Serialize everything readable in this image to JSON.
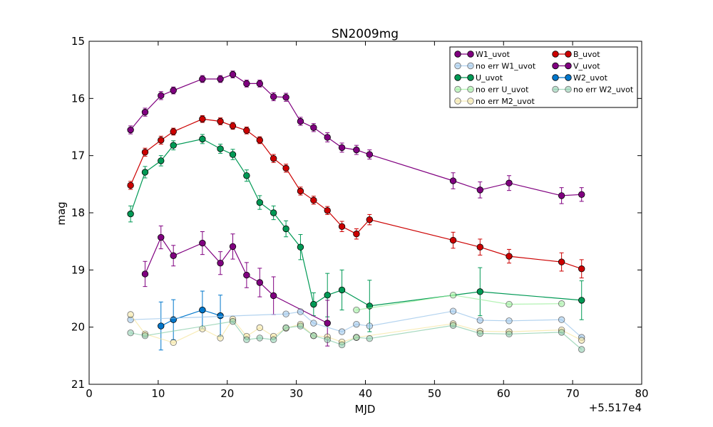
{
  "chart_data": {
    "type": "scatter",
    "title": "SN2009mg",
    "xlabel": "MJD",
    "ylabel": "mag",
    "x_offset_label": "+5.517e4",
    "xlim": [
      0,
      80
    ],
    "ylim": [
      21,
      15
    ],
    "y_inverted": true,
    "grid": false,
    "legend_position": "top-right",
    "x_ticks": [
      "0",
      "10",
      "20",
      "30",
      "40",
      "50",
      "60",
      "70",
      "80"
    ],
    "y_ticks": [
      "15",
      "16",
      "17",
      "18",
      "19",
      "20",
      "21"
    ],
    "legend_entries": [
      "W1_uvot",
      "B_uvot",
      "no err W1_uvot",
      "V_uvot",
      "U_uvot",
      "W2_uvot",
      "no err U_uvot",
      "no err W2_uvot",
      "no err M2_uvot"
    ],
    "series": [
      {
        "name": "V_uvot",
        "color": "#800080",
        "errorbars": true,
        "faded": false,
        "x": [
          6.0,
          8.1,
          10.4,
          12.2,
          16.4,
          19.0,
          20.8,
          22.8,
          24.7,
          26.7,
          28.5,
          30.6,
          32.5,
          34.5,
          36.6,
          38.7,
          40.6,
          52.7,
          56.6,
          60.8,
          68.4,
          71.3
        ],
        "y": [
          16.55,
          16.24,
          15.95,
          15.86,
          15.66,
          15.66,
          15.58,
          15.74,
          15.74,
          15.97,
          15.98,
          16.4,
          16.51,
          16.68,
          16.86,
          16.9,
          16.98,
          17.44,
          17.6,
          17.48,
          17.7,
          17.68
        ],
        "err": [
          0.07,
          0.07,
          0.07,
          0.06,
          0.06,
          0.06,
          0.06,
          0.06,
          0.06,
          0.07,
          0.07,
          0.07,
          0.07,
          0.08,
          0.08,
          0.08,
          0.08,
          0.14,
          0.14,
          0.13,
          0.14,
          0.12
        ]
      },
      {
        "name": "B_uvot",
        "color": "#cc0000",
        "errorbars": true,
        "faded": false,
        "x": [
          6.0,
          8.1,
          10.4,
          12.2,
          16.4,
          19.0,
          20.8,
          22.8,
          24.7,
          26.7,
          28.5,
          30.6,
          32.5,
          34.5,
          36.6,
          38.7,
          40.6,
          52.7,
          56.6,
          60.8,
          68.4,
          71.3
        ],
        "y": [
          17.52,
          16.94,
          16.73,
          16.58,
          16.36,
          16.4,
          16.48,
          16.56,
          16.73,
          17.05,
          17.22,
          17.62,
          17.78,
          17.96,
          18.24,
          18.37,
          18.12,
          18.48,
          18.6,
          18.76,
          18.86,
          18.98
        ],
        "err": [
          0.07,
          0.07,
          0.07,
          0.06,
          0.06,
          0.06,
          0.06,
          0.06,
          0.06,
          0.07,
          0.07,
          0.07,
          0.07,
          0.07,
          0.09,
          0.09,
          0.09,
          0.14,
          0.14,
          0.12,
          0.16,
          0.16
        ]
      },
      {
        "name": "U_uvot",
        "color": "#009955",
        "errorbars": true,
        "faded": false,
        "x": [
          6.0,
          8.1,
          10.4,
          12.2,
          16.4,
          19.0,
          20.8,
          22.8,
          24.7,
          26.7,
          28.5,
          30.6,
          32.5,
          34.5,
          36.6,
          40.6,
          56.6,
          71.3
        ],
        "y": [
          18.02,
          17.29,
          17.09,
          16.82,
          16.71,
          16.88,
          16.98,
          17.35,
          17.82,
          18.0,
          18.28,
          18.6,
          19.6,
          19.44,
          19.35,
          19.63,
          19.38,
          19.53
        ],
        "err": [
          0.14,
          0.1,
          0.09,
          0.08,
          0.08,
          0.08,
          0.09,
          0.1,
          0.12,
          0.12,
          0.14,
          0.22,
          0.2,
          0.38,
          0.35,
          0.45,
          0.42,
          0.34
        ]
      },
      {
        "name": "W1_uvot",
        "color": "#800080",
        "errorbars": true,
        "faded": false,
        "x": [
          8.1,
          10.4,
          12.2,
          16.4,
          19.0,
          20.8,
          22.8,
          24.7,
          26.7,
          34.5
        ],
        "y": [
          19.07,
          18.43,
          18.75,
          18.53,
          18.88,
          18.59,
          19.09,
          19.22,
          19.45,
          19.93
        ],
        "err": [
          0.22,
          0.2,
          0.18,
          0.2,
          0.2,
          0.22,
          0.22,
          0.25,
          0.33,
          0.4
        ]
      },
      {
        "name": "W2_uvot",
        "color": "#0077cc",
        "errorbars": true,
        "faded": false,
        "x": [
          10.4,
          12.2,
          16.4,
          19.0
        ],
        "y": [
          19.98,
          19.87,
          19.7,
          19.8
        ],
        "err": [
          0.42,
          0.35,
          0.33,
          0.36
        ]
      },
      {
        "name": "no err W1_uvot",
        "color": "#99c4ea",
        "errorbars": false,
        "faded": true,
        "x": [
          6.0,
          28.5,
          30.6,
          32.5,
          36.6,
          38.7,
          40.6,
          52.7,
          56.6,
          60.8,
          68.4,
          71.3
        ],
        "y": [
          19.87,
          19.77,
          19.73,
          19.93,
          20.08,
          19.95,
          19.98,
          19.72,
          19.88,
          19.89,
          19.87,
          20.18
        ]
      },
      {
        "name": "no err U_uvot",
        "color": "#99ee99",
        "errorbars": false,
        "faded": true,
        "x": [
          38.7,
          52.7,
          60.8,
          68.4
        ],
        "y": [
          19.7,
          19.44,
          19.6,
          19.59
        ]
      },
      {
        "name": "no err M2_uvot",
        "color": "#f5e6a0",
        "errorbars": false,
        "faded": true,
        "x": [
          6.0,
          8.1,
          12.2,
          16.4,
          19.0,
          20.8,
          22.8,
          24.7,
          26.7,
          28.5,
          30.6,
          32.5,
          34.5,
          36.6,
          38.7,
          52.7,
          56.6,
          60.8,
          68.4,
          71.3
        ],
        "y": [
          19.78,
          20.12,
          20.27,
          20.03,
          20.19,
          19.86,
          20.16,
          20.01,
          20.16,
          20.02,
          19.95,
          20.15,
          20.17,
          20.26,
          20.18,
          19.94,
          20.07,
          20.08,
          20.05,
          20.23
        ]
      },
      {
        "name": "no err W2_uvot",
        "color": "#88ccaa",
        "errorbars": false,
        "faded": true,
        "x": [
          6.0,
          8.1,
          20.8,
          22.8,
          24.7,
          26.7,
          28.5,
          30.6,
          32.5,
          34.5,
          36.6,
          38.7,
          40.6,
          52.7,
          56.6,
          60.8,
          68.4,
          71.3
        ],
        "y": [
          20.1,
          20.15,
          19.9,
          20.22,
          20.19,
          20.22,
          20.01,
          19.98,
          20.15,
          20.22,
          20.31,
          20.18,
          20.2,
          19.97,
          20.11,
          20.12,
          20.09,
          20.39
        ]
      }
    ]
  }
}
